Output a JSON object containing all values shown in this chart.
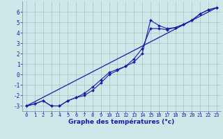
{
  "xlabel": "Graphe des températures (°c)",
  "bg_color": "#cce8e8",
  "grid_color": "#aacaca",
  "line_color": "#1a1aaa",
  "marker_color": "#1a1aaa",
  "xlim": [
    -0.5,
    23.5
  ],
  "ylim": [
    -3.5,
    7.0
  ],
  "xticks": [
    0,
    1,
    2,
    3,
    4,
    5,
    6,
    7,
    8,
    9,
    10,
    11,
    12,
    13,
    14,
    15,
    16,
    17,
    18,
    19,
    20,
    21,
    22,
    23
  ],
  "yticks": [
    -3,
    -2,
    -1,
    0,
    1,
    2,
    3,
    4,
    5,
    6
  ],
  "line1_x": [
    0,
    1,
    2,
    3,
    4,
    5,
    6,
    7,
    8,
    9,
    10,
    11,
    12,
    13,
    14,
    15,
    16,
    17,
    18,
    19,
    20,
    21,
    22,
    23
  ],
  "line1_y": [
    -3.0,
    -2.8,
    -2.5,
    -3.0,
    -3.0,
    -2.5,
    -2.2,
    -1.8,
    -1.2,
    -0.5,
    0.2,
    0.5,
    0.8,
    1.2,
    2.0,
    5.2,
    4.7,
    4.4,
    4.5,
    4.8,
    5.2,
    5.8,
    6.2,
    6.4
  ],
  "line2_x": [
    0,
    1,
    2,
    3,
    4,
    5,
    6,
    7,
    8,
    9,
    10,
    11,
    12,
    13,
    14,
    15,
    16,
    17,
    18,
    19,
    20,
    21,
    22,
    23
  ],
  "line2_y": [
    -3.0,
    -2.8,
    -2.5,
    -3.0,
    -3.0,
    -2.5,
    -2.2,
    -2.0,
    -1.5,
    -0.8,
    0.0,
    0.4,
    0.8,
    1.5,
    2.5,
    4.4,
    4.4,
    4.3,
    4.5,
    4.8,
    5.2,
    5.8,
    6.2,
    6.4
  ],
  "line3_x": [
    0,
    23
  ],
  "line3_y": [
    -3.0,
    6.4
  ],
  "xlabel_fontsize": 6.5,
  "tick_fontsize": 5.5
}
